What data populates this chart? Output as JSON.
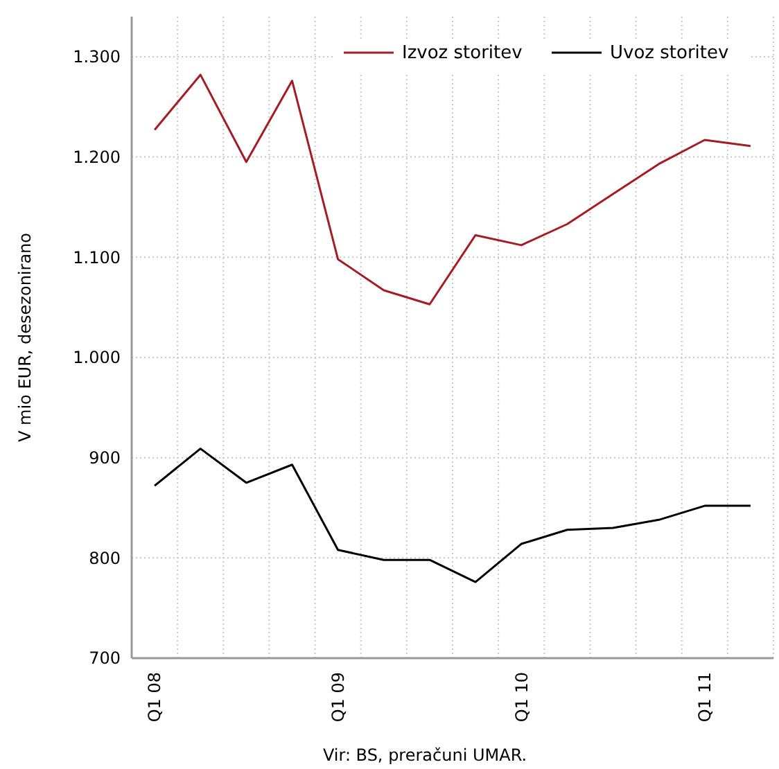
{
  "chart_data": {
    "type": "line",
    "ylabel": "V mio EUR, desezonirano",
    "categories": [
      "Q1 08",
      null,
      null,
      null,
      "Q1 09",
      null,
      null,
      null,
      "Q1 10",
      null,
      null,
      null,
      "Q1 11",
      null
    ],
    "series": [
      {
        "name": "Izvoz storitev",
        "color": "#a51c24",
        "values": [
          1227,
          1282,
          1195,
          1276,
          1098,
          1067,
          1053,
          1122,
          1112,
          1133,
          1163,
          1193,
          1217,
          1211
        ]
      },
      {
        "name": "Uvoz storitev",
        "color": "#000000",
        "values": [
          872,
          909,
          875,
          893,
          808,
          798,
          798,
          776,
          814,
          828,
          830,
          838,
          852,
          852
        ]
      }
    ],
    "ylim": [
      700,
      1340
    ],
    "yticks": [
      {
        "value": 700,
        "label": "700"
      },
      {
        "value": 800,
        "label": "800"
      },
      {
        "value": 900,
        "label": "900"
      },
      {
        "value": 1000,
        "label": "1.000"
      },
      {
        "value": 1100,
        "label": "1.100"
      },
      {
        "value": 1200,
        "label": "1.200"
      },
      {
        "value": 1300,
        "label": "1.300"
      }
    ],
    "grid": true,
    "legend": "top right",
    "marker": "none",
    "line_style": "solid",
    "annotations": [
      "Vir: BS, preračuni UMAR."
    ]
  }
}
